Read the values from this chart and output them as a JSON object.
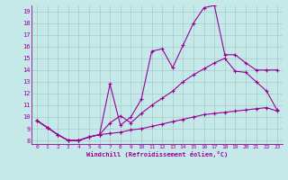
{
  "xlabel": "Windchill (Refroidissement éolien,°C)",
  "bg_color": "#c5e8e8",
  "line_color": "#990099",
  "grid_color": "#a8cccc",
  "xlim": [
    -0.5,
    23.5
  ],
  "ylim": [
    7.7,
    19.5
  ],
  "xticks": [
    0,
    1,
    2,
    3,
    4,
    5,
    6,
    7,
    8,
    9,
    10,
    11,
    12,
    13,
    14,
    15,
    16,
    17,
    18,
    19,
    20,
    21,
    22,
    23
  ],
  "yticks": [
    8,
    9,
    10,
    11,
    12,
    13,
    14,
    15,
    16,
    17,
    18,
    19
  ],
  "line_upper_x": [
    0,
    1,
    2,
    3,
    4,
    5,
    6,
    7,
    8,
    9,
    10,
    11,
    12,
    13,
    14,
    15,
    16,
    17,
    18,
    19,
    20,
    21,
    22,
    23
  ],
  "line_upper_y": [
    9.7,
    9.1,
    8.5,
    8.0,
    8.0,
    8.3,
    8.5,
    12.8,
    9.3,
    10.0,
    11.5,
    15.6,
    15.8,
    14.2,
    16.1,
    18.0,
    19.3,
    19.5,
    15.3,
    15.3,
    14.6,
    14.0,
    14.0,
    14.0
  ],
  "line_mid_x": [
    0,
    1,
    2,
    3,
    4,
    5,
    6,
    7,
    8,
    9,
    10,
    11,
    12,
    13,
    14,
    15,
    16,
    17,
    18,
    19,
    20,
    21,
    22,
    23
  ],
  "line_mid_y": [
    9.7,
    9.1,
    8.5,
    8.0,
    8.0,
    8.3,
    8.5,
    9.5,
    10.1,
    9.5,
    10.3,
    11.0,
    11.6,
    12.2,
    13.0,
    13.6,
    14.1,
    14.6,
    15.0,
    13.9,
    13.8,
    13.0,
    12.2,
    10.6
  ],
  "line_lower_x": [
    0,
    1,
    2,
    3,
    4,
    5,
    6,
    7,
    8,
    9,
    10,
    11,
    12,
    13,
    14,
    15,
    16,
    17,
    18,
    19,
    20,
    21,
    22,
    23
  ],
  "line_lower_y": [
    9.7,
    9.1,
    8.5,
    8.0,
    8.0,
    8.3,
    8.5,
    8.6,
    8.7,
    8.9,
    9.0,
    9.2,
    9.4,
    9.6,
    9.8,
    10.0,
    10.2,
    10.3,
    10.4,
    10.5,
    10.6,
    10.7,
    10.8,
    10.5
  ]
}
